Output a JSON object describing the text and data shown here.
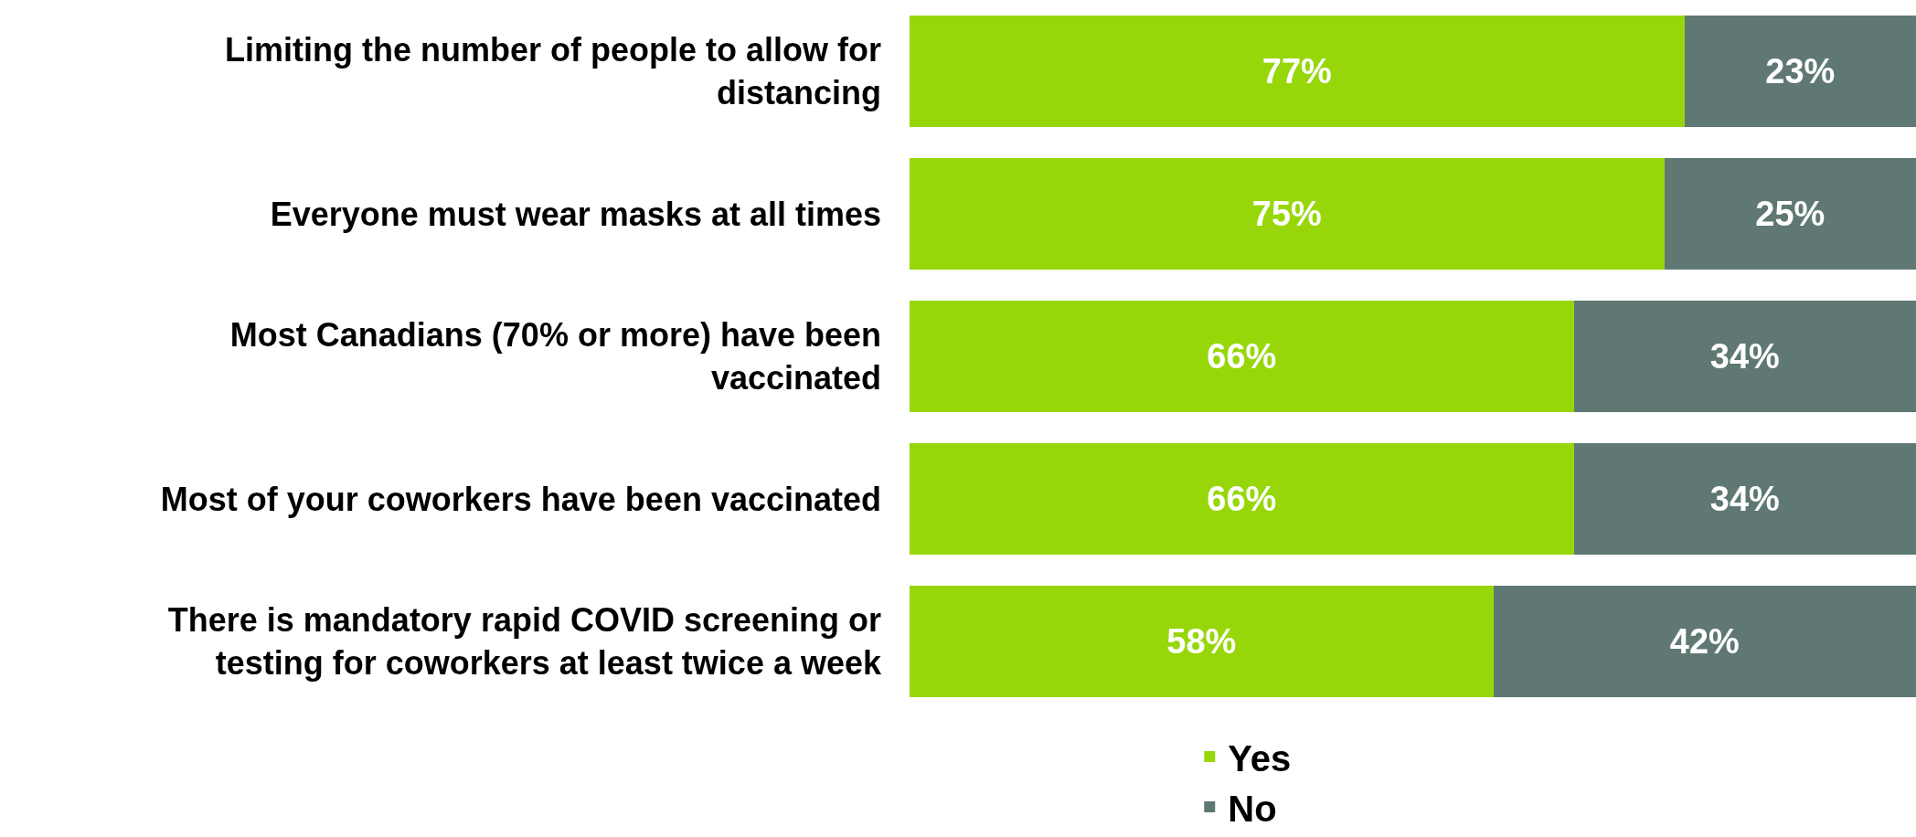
{
  "chart_data": {
    "type": "bar",
    "orientation": "horizontal",
    "stacked": true,
    "categories": [
      "Limiting the number of people to allow for distancing",
      "Everyone must wear masks at all times",
      "Most Canadians (70% or more) have been vaccinated",
      "Most of your coworkers have been vaccinated",
      "There is mandatory rapid COVID screening or testing for coworkers at least twice a week"
    ],
    "series": [
      {
        "name": "Yes",
        "color": "#97d70a",
        "values": [
          77,
          75,
          66,
          66,
          58
        ],
        "value_labels": [
          "77%",
          "75%",
          "66%",
          "66%",
          "58%"
        ]
      },
      {
        "name": "No",
        "color": "#5f7873",
        "values": [
          23,
          25,
          34,
          34,
          42
        ],
        "value_labels": [
          "23%",
          "25%",
          "34%",
          "34%",
          "42%"
        ]
      }
    ],
    "xlim": [
      0,
      100
    ],
    "tick_labels": "y",
    "legend": "bottom"
  }
}
